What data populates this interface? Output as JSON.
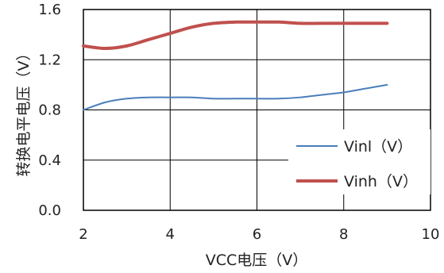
{
  "chart_data": {
    "type": "line",
    "title": "",
    "xlabel": "VCC电压（V）",
    "ylabel": "转换电平电压（V）",
    "xlim": [
      2,
      10
    ],
    "ylim": [
      0.0,
      1.6
    ],
    "x_ticks": [
      "2",
      "4",
      "6",
      "8",
      "10"
    ],
    "y_ticks": [
      "0.0",
      "0.4",
      "0.8",
      "1.2",
      "1.6"
    ],
    "grid": true,
    "legend_position": "lower-right",
    "series": [
      {
        "name": "Vinl（V）",
        "color": "#4a7ebb",
        "x": [
          2.0,
          2.5,
          3.0,
          3.5,
          4.0,
          4.5,
          5.0,
          5.5,
          6.0,
          6.5,
          7.0,
          7.5,
          8.0,
          8.5,
          9.0
        ],
        "y": [
          0.8,
          0.86,
          0.89,
          0.9,
          0.9,
          0.9,
          0.89,
          0.89,
          0.89,
          0.89,
          0.9,
          0.92,
          0.94,
          0.97,
          1.0
        ]
      },
      {
        "name": "Vinh（V）",
        "color": "#c0504d",
        "x": [
          2.0,
          2.5,
          3.0,
          3.5,
          4.0,
          4.5,
          5.0,
          5.5,
          6.0,
          6.5,
          7.0,
          7.5,
          8.0,
          8.5,
          9.0
        ],
        "y": [
          1.31,
          1.29,
          1.31,
          1.36,
          1.41,
          1.46,
          1.49,
          1.5,
          1.5,
          1.5,
          1.49,
          1.49,
          1.49,
          1.49,
          1.49
        ]
      }
    ]
  }
}
